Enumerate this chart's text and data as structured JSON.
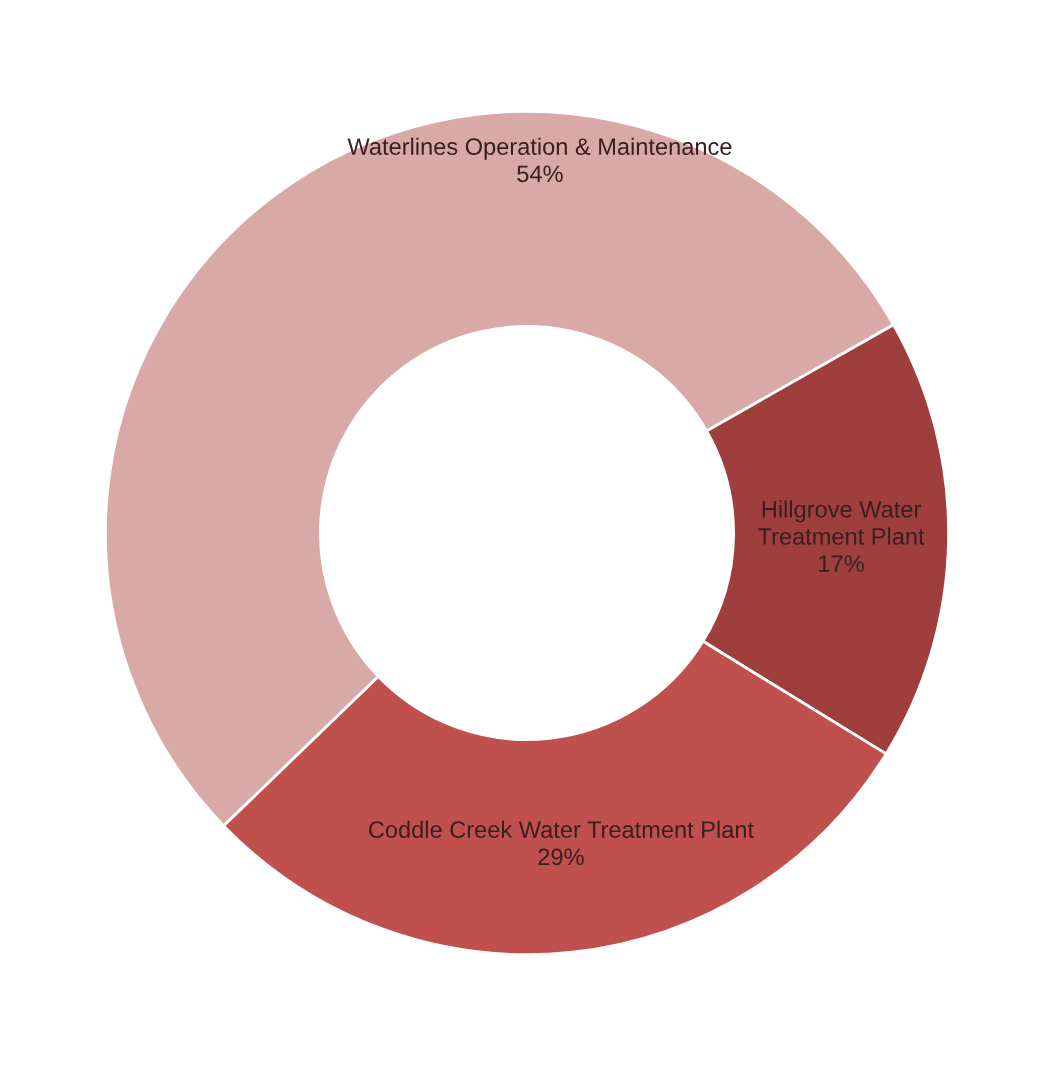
{
  "chart_data": {
    "type": "donut",
    "categories": [
      "Waterlines Operation & Maintenance",
      "Hillgrove Water\nTreatment Plant",
      "Coddle Creek Water Treatment Plant"
    ],
    "values": [
      54,
      17,
      29
    ],
    "colors": [
      "#d9a9a8",
      "#9e3f3e",
      "#c0504d"
    ],
    "value_labels": [
      "54%",
      "17%",
      "29%"
    ],
    "legend": false
  }
}
